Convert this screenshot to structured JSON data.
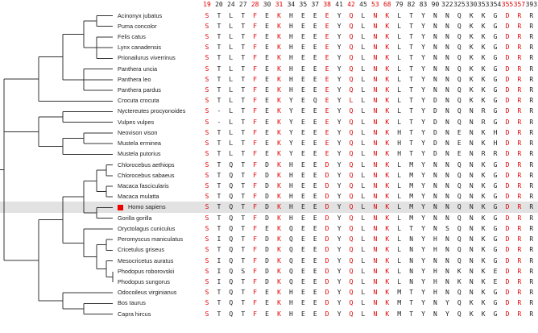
{
  "positions": [
    {
      "label": "19",
      "color": "red"
    },
    {
      "label": "20",
      "color": "black"
    },
    {
      "label": "24",
      "color": "black"
    },
    {
      "label": "27",
      "color": "black"
    },
    {
      "label": "28",
      "color": "red"
    },
    {
      "label": "30",
      "color": "black"
    },
    {
      "label": "31",
      "color": "red"
    },
    {
      "label": "34",
      "color": "black"
    },
    {
      "label": "35",
      "color": "black"
    },
    {
      "label": "37",
      "color": "black"
    },
    {
      "label": "38",
      "color": "red"
    },
    {
      "label": "41",
      "color": "black"
    },
    {
      "label": "42",
      "color": "red"
    },
    {
      "label": "45",
      "color": "black"
    },
    {
      "label": "53",
      "color": "red"
    },
    {
      "label": "68",
      "color": "red"
    },
    {
      "label": "79",
      "color": "black"
    },
    {
      "label": "82",
      "color": "black"
    },
    {
      "label": "83",
      "color": "black"
    },
    {
      "label": "90",
      "color": "black"
    },
    {
      "label": "322",
      "color": "black"
    },
    {
      "label": "325",
      "color": "black"
    },
    {
      "label": "330",
      "color": "black"
    },
    {
      "label": "353",
      "color": "black"
    },
    {
      "label": "354",
      "color": "black"
    },
    {
      "label": "355",
      "color": "red"
    },
    {
      "label": "357",
      "color": "red"
    },
    {
      "label": "393",
      "color": "black"
    }
  ],
  "red_columns": [
    0,
    4,
    6,
    10,
    12,
    14,
    15,
    25,
    26
  ],
  "species": [
    {
      "name": "Acinonyx jubatus",
      "residues": [
        "S",
        "T",
        "L",
        "T",
        "F",
        "E",
        "K",
        "H",
        "E",
        "E",
        "E",
        "Y",
        "Q",
        "L",
        "N",
        "K",
        "L",
        "T",
        "Y",
        "N",
        "N",
        "Q",
        "K",
        "K",
        "G",
        "D",
        "R",
        "R"
      ]
    },
    {
      "name": "Puma concolor",
      "residues": [
        "S",
        "T",
        "L",
        "T",
        "F",
        "E",
        "K",
        "H",
        "E",
        "E",
        "E",
        "Y",
        "Q",
        "L",
        "N",
        "K",
        "L",
        "T",
        "Y",
        "N",
        "N",
        "Q",
        "K",
        "K",
        "G",
        "D",
        "R",
        "R"
      ]
    },
    {
      "name": "Felis catus",
      "residues": [
        "S",
        "T",
        "L",
        "T",
        "F",
        "E",
        "K",
        "H",
        "E",
        "E",
        "E",
        "Y",
        "Q",
        "L",
        "N",
        "K",
        "L",
        "T",
        "Y",
        "N",
        "N",
        "Q",
        "K",
        "K",
        "G",
        "D",
        "R",
        "R"
      ]
    },
    {
      "name": "Lynx canadensis",
      "residues": [
        "S",
        "T",
        "L",
        "T",
        "F",
        "E",
        "K",
        "H",
        "E",
        "E",
        "E",
        "Y",
        "Q",
        "L",
        "N",
        "K",
        "L",
        "T",
        "Y",
        "N",
        "N",
        "Q",
        "K",
        "K",
        "G",
        "D",
        "R",
        "R"
      ]
    },
    {
      "name": "Prionailurus viverrinus",
      "residues": [
        "S",
        "T",
        "L",
        "T",
        "F",
        "E",
        "K",
        "H",
        "E",
        "E",
        "E",
        "Y",
        "Q",
        "L",
        "N",
        "K",
        "L",
        "T",
        "Y",
        "N",
        "N",
        "Q",
        "K",
        "K",
        "G",
        "D",
        "R",
        "R"
      ]
    },
    {
      "name": "Panthera uncia",
      "residues": [
        "S",
        "T",
        "L",
        "T",
        "F",
        "E",
        "K",
        "H",
        "E",
        "E",
        "E",
        "Y",
        "Q",
        "L",
        "N",
        "K",
        "L",
        "T",
        "Y",
        "N",
        "N",
        "Q",
        "K",
        "K",
        "G",
        "D",
        "R",
        "R"
      ]
    },
    {
      "name": "Panthera leo",
      "residues": [
        "S",
        "T",
        "L",
        "T",
        "F",
        "E",
        "K",
        "H",
        "E",
        "E",
        "E",
        "Y",
        "Q",
        "L",
        "N",
        "K",
        "L",
        "T",
        "Y",
        "N",
        "N",
        "Q",
        "K",
        "K",
        "G",
        "D",
        "R",
        "R"
      ]
    },
    {
      "name": "Panthera pardus",
      "residues": [
        "S",
        "T",
        "L",
        "T",
        "F",
        "E",
        "K",
        "H",
        "E",
        "E",
        "E",
        "Y",
        "Q",
        "L",
        "N",
        "K",
        "L",
        "T",
        "Y",
        "N",
        "N",
        "Q",
        "K",
        "K",
        "G",
        "D",
        "R",
        "R"
      ]
    },
    {
      "name": "Crocuta crocuta",
      "residues": [
        "S",
        "T",
        "L",
        "T",
        "F",
        "E",
        "K",
        "Y",
        "E",
        "Q",
        "E",
        "Y",
        "L",
        "L",
        "N",
        "K",
        "L",
        "T",
        "Y",
        "D",
        "N",
        "Q",
        "K",
        "K",
        "G",
        "D",
        "R",
        "R"
      ]
    },
    {
      "name": "Nyctereutes procyonoides",
      "residues": [
        "S",
        "-",
        "L",
        "T",
        "F",
        "E",
        "K",
        "Y",
        "E",
        "E",
        "E",
        "Y",
        "Q",
        "L",
        "N",
        "K",
        "L",
        "T",
        "Y",
        "D",
        "N",
        "Q",
        "N",
        "R",
        "G",
        "D",
        "R",
        "R"
      ]
    },
    {
      "name": "Vulpes vulpes",
      "residues": [
        "S",
        "-",
        "L",
        "T",
        "F",
        "E",
        "K",
        "Y",
        "E",
        "E",
        "E",
        "Y",
        "Q",
        "L",
        "N",
        "K",
        "L",
        "T",
        "Y",
        "D",
        "N",
        "Q",
        "N",
        "R",
        "G",
        "D",
        "R",
        "R"
      ]
    },
    {
      "name": "Neovison vison",
      "residues": [
        "S",
        "T",
        "L",
        "T",
        "F",
        "E",
        "K",
        "Y",
        "E",
        "E",
        "E",
        "Y",
        "Q",
        "L",
        "N",
        "K",
        "H",
        "T",
        "Y",
        "D",
        "N",
        "E",
        "N",
        "K",
        "H",
        "D",
        "R",
        "R"
      ]
    },
    {
      "name": "Mustela erminea",
      "residues": [
        "S",
        "T",
        "L",
        "T",
        "F",
        "E",
        "K",
        "Y",
        "E",
        "E",
        "E",
        "Y",
        "Q",
        "L",
        "N",
        "K",
        "H",
        "T",
        "Y",
        "D",
        "N",
        "E",
        "N",
        "K",
        "H",
        "D",
        "R",
        "R"
      ]
    },
    {
      "name": "Mustela putorius",
      "residues": [
        "S",
        "T",
        "L",
        "T",
        "F",
        "E",
        "K",
        "Y",
        "E",
        "E",
        "E",
        "Y",
        "Q",
        "L",
        "N",
        "K",
        "H",
        "T",
        "Y",
        "D",
        "N",
        "E",
        "N",
        "R",
        "R",
        "D",
        "R",
        "R"
      ]
    },
    {
      "name": "Chlorocebus aethiops",
      "residues": [
        "S",
        "T",
        "Q",
        "T",
        "F",
        "D",
        "K",
        "H",
        "E",
        "E",
        "D",
        "Y",
        "Q",
        "L",
        "N",
        "K",
        "L",
        "M",
        "Y",
        "N",
        "N",
        "Q",
        "N",
        "K",
        "G",
        "D",
        "R",
        "R"
      ]
    },
    {
      "name": "Chlorocebus sabaeus",
      "residues": [
        "S",
        "T",
        "Q",
        "T",
        "F",
        "D",
        "K",
        "H",
        "E",
        "E",
        "D",
        "Y",
        "Q",
        "L",
        "N",
        "K",
        "L",
        "M",
        "Y",
        "N",
        "N",
        "Q",
        "N",
        "K",
        "G",
        "D",
        "R",
        "R"
      ]
    },
    {
      "name": "Macaca fascicularis",
      "residues": [
        "S",
        "T",
        "Q",
        "T",
        "F",
        "D",
        "K",
        "H",
        "E",
        "E",
        "D",
        "Y",
        "Q",
        "L",
        "N",
        "K",
        "L",
        "M",
        "Y",
        "N",
        "N",
        "Q",
        "N",
        "K",
        "G",
        "D",
        "R",
        "R"
      ]
    },
    {
      "name": "Macaca mulatta",
      "residues": [
        "S",
        "T",
        "Q",
        "T",
        "F",
        "D",
        "K",
        "H",
        "E",
        "E",
        "D",
        "Y",
        "Q",
        "L",
        "N",
        "K",
        "L",
        "M",
        "Y",
        "N",
        "N",
        "Q",
        "N",
        "K",
        "G",
        "D",
        "R",
        "R"
      ]
    },
    {
      "name": "Homo sapiens",
      "highlight": true,
      "residues": [
        "S",
        "T",
        "Q",
        "T",
        "F",
        "D",
        "K",
        "H",
        "E",
        "E",
        "D",
        "Y",
        "Q",
        "L",
        "N",
        "K",
        "L",
        "M",
        "Y",
        "N",
        "N",
        "Q",
        "N",
        "K",
        "G",
        "D",
        "R",
        "R"
      ]
    },
    {
      "name": "Gorilla gorilla",
      "residues": [
        "S",
        "T",
        "Q",
        "T",
        "F",
        "D",
        "K",
        "H",
        "E",
        "E",
        "D",
        "Y",
        "Q",
        "L",
        "N",
        "K",
        "L",
        "M",
        "Y",
        "N",
        "N",
        "Q",
        "N",
        "K",
        "G",
        "D",
        "R",
        "R"
      ]
    },
    {
      "name": "Oryctolagus cuniculus",
      "residues": [
        "S",
        "T",
        "Q",
        "T",
        "F",
        "E",
        "K",
        "Q",
        "E",
        "E",
        "D",
        "Y",
        "Q",
        "L",
        "N",
        "K",
        "L",
        "T",
        "Y",
        "N",
        "S",
        "Q",
        "N",
        "K",
        "G",
        "D",
        "R",
        "R"
      ]
    },
    {
      "name": "Peromyscus maniculatus",
      "residues": [
        "S",
        "I",
        "Q",
        "T",
        "F",
        "D",
        "K",
        "Q",
        "E",
        "E",
        "D",
        "Y",
        "Q",
        "L",
        "N",
        "K",
        "L",
        "N",
        "Y",
        "H",
        "N",
        "Q",
        "N",
        "K",
        "G",
        "D",
        "R",
        "R"
      ]
    },
    {
      "name": "Cricetulus griseus",
      "residues": [
        "S",
        "T",
        "Q",
        "T",
        "F",
        "D",
        "K",
        "Q",
        "E",
        "E",
        "D",
        "Y",
        "Q",
        "L",
        "N",
        "K",
        "L",
        "N",
        "Y",
        "H",
        "N",
        "Q",
        "N",
        "K",
        "G",
        "D",
        "R",
        "R"
      ]
    },
    {
      "name": "Mesocricetus auratus",
      "residues": [
        "S",
        "I",
        "Q",
        "T",
        "F",
        "D",
        "K",
        "Q",
        "E",
        "E",
        "D",
        "Y",
        "Q",
        "L",
        "N",
        "K",
        "L",
        "N",
        "Y",
        "N",
        "N",
        "Q",
        "N",
        "K",
        "G",
        "D",
        "R",
        "R"
      ]
    },
    {
      "name": "Phodopus roborovskii",
      "residues": [
        "S",
        "I",
        "Q",
        "S",
        "F",
        "D",
        "K",
        "Q",
        "E",
        "E",
        "D",
        "Y",
        "Q",
        "L",
        "N",
        "K",
        "L",
        "N",
        "Y",
        "H",
        "N",
        "K",
        "N",
        "K",
        "E",
        "D",
        "R",
        "R"
      ]
    },
    {
      "name": "Phodopus sungorus",
      "residues": [
        "S",
        "I",
        "Q",
        "T",
        "F",
        "D",
        "K",
        "Q",
        "E",
        "E",
        "D",
        "Y",
        "Q",
        "L",
        "N",
        "K",
        "L",
        "N",
        "Y",
        "H",
        "N",
        "K",
        "N",
        "K",
        "E",
        "D",
        "R",
        "R"
      ]
    },
    {
      "name": "Odocoileus virginianus",
      "residues": [
        "S",
        "T",
        "Q",
        "T",
        "F",
        "E",
        "K",
        "H",
        "E",
        "E",
        "D",
        "Y",
        "Q",
        "L",
        "N",
        "K",
        "M",
        "T",
        "Y",
        "H",
        "N",
        "Q",
        "N",
        "K",
        "G",
        "D",
        "R",
        "R"
      ]
    },
    {
      "name": "Bos taurus",
      "residues": [
        "S",
        "T",
        "Q",
        "T",
        "F",
        "E",
        "K",
        "H",
        "E",
        "E",
        "D",
        "Y",
        "Q",
        "L",
        "N",
        "K",
        "M",
        "T",
        "Y",
        "N",
        "Y",
        "Q",
        "K",
        "K",
        "G",
        "D",
        "R",
        "R"
      ]
    },
    {
      "name": "Capra hircus",
      "residues": [
        "S",
        "T",
        "Q",
        "T",
        "F",
        "E",
        "K",
        "H",
        "E",
        "E",
        "D",
        "Y",
        "Q",
        "L",
        "N",
        "K",
        "M",
        "T",
        "Y",
        "N",
        "Y",
        "Q",
        "K",
        "K",
        "G",
        "D",
        "R",
        "R"
      ]
    }
  ],
  "tree": {
    "children": [
      {
        "children": [
          {
            "children": [
              {
                "children": [
                  {
                    "children": [
                      {
                        "leaf": 0
                      },
                      {
                        "leaf": 1
                      }
                    ]
                  },
                  {
                    "children": [
                      {
                        "leaf": 2
                      },
                      {
                        "leaf": 3
                      },
                      {
                        "leaf": 4
                      }
                    ]
                  }
                ]
              },
              {
                "children": [
                  {
                    "leaf": 5
                  },
                  {
                    "leaf": 6
                  },
                  {
                    "leaf": 7
                  }
                ]
              }
            ]
          },
          {
            "leaf": 8
          }
        ]
      },
      {
        "children": [
          {
            "children": [
              {
                "leaf": 9
              },
              {
                "leaf": 10
              }
            ]
          },
          {
            "children": [
              {
                "children": [
                  {
                    "leaf": 11
                  },
                  {
                    "leaf": 12
                  }
                ]
              },
              {
                "leaf": 13
              }
            ]
          }
        ]
      },
      {
        "children": [
          {
            "children": [
              {
                "children": [
                  {
                    "children": [
                      {
                        "children": [
                          {
                            "leaf": 14
                          },
                          {
                            "leaf": 15
                          }
                        ]
                      },
                      {
                        "children": [
                          {
                            "leaf": 16
                          },
                          {
                            "leaf": 17
                          }
                        ]
                      }
                    ]
                  },
                  {
                    "children": [
                      {
                        "leaf": 18
                      },
                      {
                        "leaf": 19
                      }
                    ]
                  }
                ]
              },
              {
                "children": [
                  {
                    "leaf": 20
                  },
                  {
                    "children": [
                      {
                        "children": [
                          {
                            "leaf": 21
                          },
                          {
                            "leaf": 22
                          }
                        ]
                      },
                      {
                        "children": [
                          {
                            "leaf": 23
                          },
                          {
                            "children": [
                              {
                                "leaf": 24
                              },
                              {
                                "leaf": 25
                              }
                            ]
                          }
                        ]
                      }
                    ]
                  }
                ]
              }
            ]
          },
          {
            "children": [
              {
                "leaf": 26
              },
              {
                "children": [
                  {
                    "leaf": 27
                  },
                  {
                    "leaf": 28
                  }
                ]
              }
            ]
          }
        ]
      }
    ]
  },
  "colors": {
    "red": "#e00000",
    "black": "#222222",
    "highlight": "#e2e2e2",
    "marker": "#ee0000",
    "tree": "#333333"
  }
}
